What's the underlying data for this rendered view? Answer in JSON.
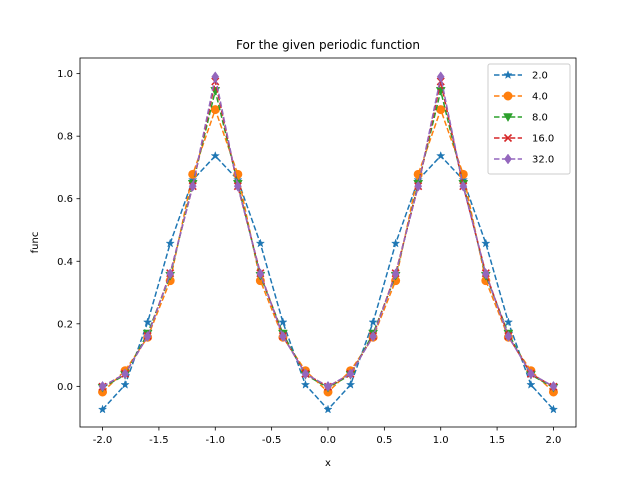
{
  "chart_data": {
    "type": "line",
    "title": "For the given periodic function",
    "xlabel": "x",
    "ylabel": "func",
    "xlim": [
      -2.2,
      2.2
    ],
    "ylim": [
      -0.13,
      1.05
    ],
    "xticks": [
      "-2.0",
      "-1.5",
      "-1.0",
      "-0.5",
      "0.0",
      "0.5",
      "1.0",
      "1.5",
      "2.0"
    ],
    "yticks": [
      "0.0",
      "0.2",
      "0.4",
      "0.6",
      "0.8",
      "1.0"
    ],
    "grid": false,
    "legend_position": "top-right",
    "x": [
      -2.0,
      -1.8,
      -1.6,
      -1.4,
      -1.2,
      -1.0,
      -0.8,
      -0.6,
      -0.4,
      -0.2,
      0.0,
      0.2,
      0.4,
      0.6,
      0.8,
      1.0,
      1.2,
      1.4,
      1.6,
      1.8,
      2.0
    ],
    "series": [
      {
        "name": "2.0",
        "color": "#1f77b4",
        "marker": "star",
        "values": [
          -0.074,
          0.005,
          0.205,
          0.457,
          0.66,
          0.737,
          0.66,
          0.457,
          0.205,
          0.005,
          -0.074,
          0.005,
          0.205,
          0.457,
          0.66,
          0.737,
          0.66,
          0.457,
          0.205,
          0.005,
          -0.074
        ]
      },
      {
        "name": "4.0",
        "color": "#ff7f0e",
        "marker": "circle",
        "values": [
          -0.018,
          0.05,
          0.157,
          0.338,
          0.678,
          0.885,
          0.678,
          0.338,
          0.157,
          0.05,
          -0.018,
          0.05,
          0.157,
          0.338,
          0.678,
          0.885,
          0.678,
          0.338,
          0.157,
          0.05,
          -0.018
        ]
      },
      {
        "name": "8.0",
        "color": "#2ca02c",
        "marker": "triangle-down",
        "values": [
          -0.004,
          0.037,
          0.169,
          0.354,
          0.648,
          0.945,
          0.648,
          0.354,
          0.169,
          0.037,
          -0.004,
          0.037,
          0.169,
          0.354,
          0.648,
          0.945,
          0.648,
          0.354,
          0.169,
          0.037,
          -0.004
        ]
      },
      {
        "name": "16.0",
        "color": "#d62728",
        "marker": "x",
        "values": [
          -0.001,
          0.04,
          0.161,
          0.362,
          0.64,
          0.975,
          0.64,
          0.362,
          0.161,
          0.04,
          -0.001,
          0.04,
          0.161,
          0.362,
          0.64,
          0.975,
          0.64,
          0.362,
          0.161,
          0.04,
          -0.001
        ]
      },
      {
        "name": "32.0",
        "color": "#9467bd",
        "marker": "diamond",
        "values": [
          0.0,
          0.04,
          0.16,
          0.36,
          0.64,
          0.99,
          0.64,
          0.36,
          0.16,
          0.04,
          0.0,
          0.04,
          0.16,
          0.36,
          0.64,
          0.99,
          0.64,
          0.36,
          0.16,
          0.04,
          0.0
        ]
      }
    ]
  }
}
